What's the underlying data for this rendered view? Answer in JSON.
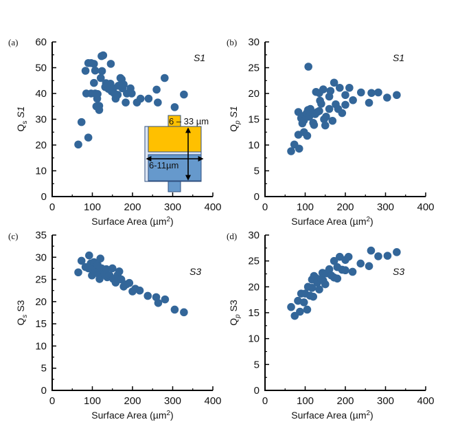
{
  "figure": {
    "marker_color": "#336699",
    "inset": {
      "height_label": "6 – 33 µm",
      "width_label": "6-11µm",
      "colors": {
        "top": "#ffc000",
        "bottom": "#6699cc",
        "outline": "#2f4f7f"
      }
    }
  },
  "chart_data": [
    {
      "panel": "(a)",
      "type": "scatter",
      "title": "",
      "annotation": "S1",
      "xlabel": "Surface Area (µm²)",
      "ylabel": "Qs S1",
      "ylabel_main": "Q",
      "ylabel_sub": "s",
      "ylabel_tail": " S1",
      "xlim": [
        0,
        400
      ],
      "ylim": [
        0,
        60
      ],
      "xticks": [
        0,
        100,
        200,
        300,
        400
      ],
      "yticks": [
        0,
        10,
        20,
        30,
        40,
        50,
        60
      ],
      "grid": false,
      "points": [
        [
          65,
          20.2
        ],
        [
          73,
          28.9
        ],
        [
          90,
          22.9
        ],
        [
          83,
          48.8
        ],
        [
          90,
          51.8
        ],
        [
          97,
          51.8
        ],
        [
          104,
          51.5
        ],
        [
          107,
          48.9
        ],
        [
          104,
          44.1
        ],
        [
          85,
          40
        ],
        [
          97,
          40
        ],
        [
          107,
          40
        ],
        [
          112,
          38
        ],
        [
          113,
          39.8
        ],
        [
          110,
          35
        ],
        [
          117,
          35.2
        ],
        [
          117,
          33.6
        ],
        [
          121,
          46
        ],
        [
          124,
          48.7
        ],
        [
          123,
          54.5
        ],
        [
          127,
          54.8
        ],
        [
          146,
          51.5
        ],
        [
          134,
          44
        ],
        [
          132,
          42.5
        ],
        [
          140,
          41.8
        ],
        [
          145,
          43.8
        ],
        [
          148,
          40.8
        ],
        [
          152,
          42
        ],
        [
          155,
          40
        ],
        [
          158,
          38
        ],
        [
          163,
          39.5
        ],
        [
          165,
          43
        ],
        [
          170,
          46
        ],
        [
          173,
          45.5
        ],
        [
          175,
          42
        ],
        [
          178,
          43.5
        ],
        [
          183,
          36.5
        ],
        [
          186,
          40
        ],
        [
          195,
          42
        ],
        [
          198,
          40
        ],
        [
          211,
          36.5
        ],
        [
          220,
          38
        ],
        [
          240,
          38
        ],
        [
          260,
          41.5
        ],
        [
          263,
          36.5
        ],
        [
          280,
          46
        ],
        [
          305,
          34.7
        ],
        [
          328,
          39.6
        ]
      ]
    },
    {
      "panel": "(b)",
      "type": "scatter",
      "title": "",
      "annotation": "S1",
      "xlabel": "Surface Area (µm²)",
      "ylabel": "Qp S1",
      "ylabel_main": "Q",
      "ylabel_sub": "p",
      "ylabel_tail": " S1",
      "xlim": [
        0,
        400
      ],
      "ylim": [
        0,
        30
      ],
      "xticks": [
        0,
        100,
        200,
        300,
        400
      ],
      "yticks": [
        0,
        5,
        10,
        15,
        20,
        25,
        30
      ],
      "grid": false,
      "points": [
        [
          65,
          8.8
        ],
        [
          73,
          10.1
        ],
        [
          85,
          9.3
        ],
        [
          83,
          12
        ],
        [
          97,
          12.5
        ],
        [
          105,
          11.8
        ],
        [
          83,
          16.4
        ],
        [
          90,
          15.2
        ],
        [
          93,
          14.2
        ],
        [
          97,
          14.8
        ],
        [
          100,
          15.8
        ],
        [
          104,
          16.2
        ],
        [
          107,
          16.8
        ],
        [
          110,
          15.5
        ],
        [
          113,
          17
        ],
        [
          117,
          16.2
        ],
        [
          120,
          14.3
        ],
        [
          122,
          13.9
        ],
        [
          125,
          16
        ],
        [
          130,
          16.4
        ],
        [
          135,
          16.6
        ],
        [
          108,
          25.2
        ],
        [
          127,
          20.3
        ],
        [
          135,
          20.1
        ],
        [
          145,
          20.8
        ],
        [
          137,
          18.6
        ],
        [
          140,
          18
        ],
        [
          147,
          15
        ],
        [
          150,
          13.8
        ],
        [
          152,
          15.5
        ],
        [
          160,
          19.4
        ],
        [
          163,
          20.5
        ],
        [
          160,
          17
        ],
        [
          168,
          14.7
        ],
        [
          172,
          22.1
        ],
        [
          176,
          17.9
        ],
        [
          182,
          17
        ],
        [
          186,
          21.1
        ],
        [
          192,
          16.2
        ],
        [
          200,
          19.7
        ],
        [
          200,
          17.8
        ],
        [
          210,
          21.1
        ],
        [
          219,
          18.7
        ],
        [
          239,
          20.2
        ],
        [
          259,
          18.2
        ],
        [
          265,
          20.1
        ],
        [
          282,
          20.2
        ],
        [
          304,
          19.2
        ],
        [
          328,
          19.7
        ]
      ]
    },
    {
      "panel": "(c)",
      "type": "scatter",
      "title": "",
      "annotation": "S3",
      "xlabel": "Surface Area (µm²)",
      "ylabel": "Qs S3",
      "ylabel_main": "Q",
      "ylabel_sub": "s",
      "ylabel_tail": " S3",
      "xlim": [
        0,
        400
      ],
      "ylim": [
        0,
        35
      ],
      "xticks": [
        0,
        100,
        200,
        300,
        400
      ],
      "yticks": [
        0,
        5,
        10,
        15,
        20,
        25,
        30,
        35
      ],
      "grid": false,
      "points": [
        [
          65,
          26.6
        ],
        [
          73,
          29.2
        ],
        [
          83,
          27.8
        ],
        [
          90,
          27.5
        ],
        [
          92,
          30.4
        ],
        [
          96,
          28.6
        ],
        [
          99,
          25.9
        ],
        [
          100,
          27.2
        ],
        [
          104,
          28.9
        ],
        [
          108,
          26.8
        ],
        [
          112,
          27.6
        ],
        [
          113,
          28.3
        ],
        [
          117,
          26.1
        ],
        [
          118,
          25.1
        ],
        [
          120,
          29.7
        ],
        [
          123,
          27.5
        ],
        [
          127,
          26.4
        ],
        [
          130,
          26.2
        ],
        [
          135,
          27.3
        ],
        [
          137,
          25.5
        ],
        [
          143,
          25.9
        ],
        [
          150,
          27.5
        ],
        [
          152,
          25.1
        ],
        [
          158,
          24.3
        ],
        [
          163,
          26
        ],
        [
          167,
          26.8
        ],
        [
          172,
          25
        ],
        [
          178,
          23.4
        ],
        [
          185,
          23.9
        ],
        [
          192,
          24.2
        ],
        [
          200,
          22.3
        ],
        [
          207,
          22.9
        ],
        [
          218,
          22.5
        ],
        [
          238,
          21.3
        ],
        [
          259,
          21
        ],
        [
          264,
          19.7
        ],
        [
          281,
          20.5
        ],
        [
          305,
          18.2
        ],
        [
          328,
          17.6
        ]
      ]
    },
    {
      "panel": "(d)",
      "type": "scatter",
      "title": "",
      "annotation": "S3",
      "xlabel": "Surface Area (µm²)",
      "ylabel": "Qp S3",
      "ylabel_main": "Q",
      "ylabel_sub": "p",
      "ylabel_tail": " S3",
      "xlim": [
        0,
        400
      ],
      "ylim": [
        0,
        30
      ],
      "xticks": [
        0,
        100,
        200,
        300,
        400
      ],
      "yticks": [
        0,
        5,
        10,
        15,
        20,
        25,
        30
      ],
      "grid": false,
      "points": [
        [
          65,
          16.1
        ],
        [
          74,
          14.4
        ],
        [
          82,
          17.3
        ],
        [
          87,
          15.2
        ],
        [
          90,
          18.7
        ],
        [
          97,
          17
        ],
        [
          100,
          18.7
        ],
        [
          105,
          15.6
        ],
        [
          107,
          20
        ],
        [
          112,
          18.3
        ],
        [
          117,
          19.8
        ],
        [
          120,
          18.1
        ],
        [
          117,
          21.4
        ],
        [
          122,
          22.1
        ],
        [
          127,
          21.7
        ],
        [
          130,
          20.8
        ],
        [
          135,
          19.5
        ],
        [
          140,
          21.5
        ],
        [
          143,
          22.7
        ],
        [
          145,
          21.2
        ],
        [
          150,
          20.5
        ],
        [
          152,
          22.6
        ],
        [
          160,
          23.4
        ],
        [
          165,
          22.2
        ],
        [
          172,
          21.8
        ],
        [
          172,
          25
        ],
        [
          180,
          21.6
        ],
        [
          180,
          23.8
        ],
        [
          186,
          25.8
        ],
        [
          192,
          23.3
        ],
        [
          200,
          25.2
        ],
        [
          200,
          23.2
        ],
        [
          208,
          25.8
        ],
        [
          218,
          22.9
        ],
        [
          238,
          24.5
        ],
        [
          259,
          24
        ],
        [
          264,
          27
        ],
        [
          282,
          25.9
        ],
        [
          305,
          26
        ],
        [
          328,
          26.7
        ]
      ]
    }
  ]
}
